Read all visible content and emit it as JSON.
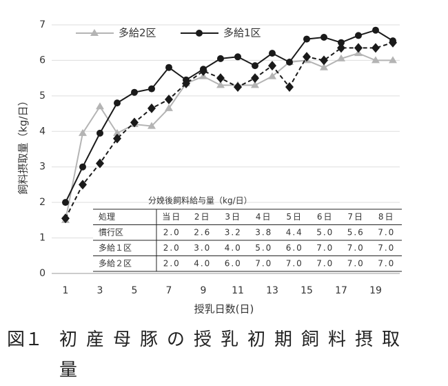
{
  "chart_data": {
    "type": "line",
    "y_label": "飼料摂取量（kg/日）",
    "x_label": "授乳日数(日)",
    "x": [
      1,
      2,
      3,
      4,
      5,
      6,
      7,
      8,
      9,
      10,
      11,
      12,
      13,
      14,
      15,
      16,
      17,
      18,
      19,
      20
    ],
    "series": [
      {
        "name": "多給2区",
        "color": "#b4b4b4",
        "marker": "triangle",
        "linestyle": "solid",
        "values": [
          1.5,
          3.95,
          4.7,
          3.95,
          4.2,
          4.15,
          4.65,
          5.35,
          5.55,
          5.3,
          5.3,
          5.3,
          5.55,
          5.95,
          6.0,
          5.8,
          6.05,
          6.2,
          6.0,
          6.0
        ]
      },
      {
        "name": "多給1区",
        "color": "#1a1a1a",
        "marker": "circle",
        "linestyle": "solid",
        "values": [
          2.0,
          3.0,
          3.95,
          4.8,
          5.1,
          5.2,
          5.8,
          5.45,
          5.75,
          6.05,
          6.1,
          5.85,
          6.2,
          5.95,
          6.6,
          6.65,
          6.5,
          6.7,
          6.85,
          6.55
        ]
      },
      {
        "color": "#1a1a1a",
        "marker": "diamond",
        "linestyle": "dashed",
        "values": [
          1.55,
          2.5,
          3.1,
          3.8,
          4.25,
          4.65,
          4.9,
          5.35,
          5.7,
          5.5,
          5.25,
          5.5,
          5.85,
          5.25,
          6.1,
          6.0,
          6.35,
          6.35,
          6.35,
          6.5
        ]
      }
    ],
    "xlim": [
      0.2,
      20.4
    ],
    "xticks": [
      1,
      3,
      5,
      7,
      9,
      11,
      13,
      15,
      17,
      19
    ],
    "ylim": [
      0,
      7
    ],
    "yticks": [
      0,
      1,
      2,
      3,
      4,
      5,
      6,
      7
    ],
    "grid": true,
    "legend": "top",
    "table": {
      "title": "分娩後飼料給与量（kg/日）",
      "header": [
        "処理",
        "当日",
        "2日",
        "3日",
        "4日",
        "5日",
        "6日",
        "7日",
        "8日"
      ],
      "rows": [
        [
          "慣行区",
          "2.0",
          "2.6",
          "3.2",
          "3.8",
          "4.4",
          "5.0",
          "5.6",
          "7.0"
        ],
        [
          "多給１区",
          "2.0",
          "3.0",
          "4.0",
          "5.0",
          "6.0",
          "7.0",
          "7.0",
          "7.0"
        ],
        [
          "多給２区",
          "2.0",
          "4.0",
          "6.0",
          "7.0",
          "7.0",
          "7.0",
          "7.0",
          "7.0"
        ]
      ]
    }
  },
  "caption": {
    "label": "図１",
    "text": "初産母豚の授乳初期飼料摂取量"
  }
}
